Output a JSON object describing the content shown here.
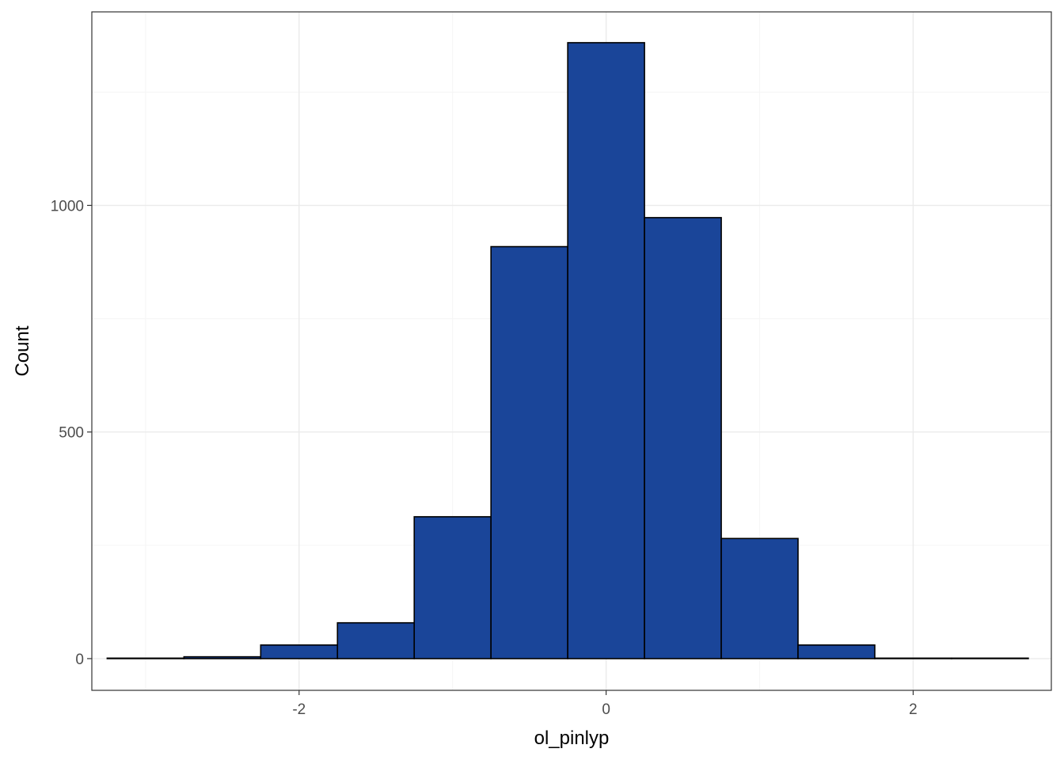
{
  "chart_data": {
    "type": "bar",
    "title": "",
    "xlabel": "ol_pinlyp",
    "ylabel": "Count",
    "x_ticks": [
      -2,
      0,
      2
    ],
    "y_ticks": [
      0,
      500,
      1000
    ],
    "x_tick_labels": [
      "-2",
      "0",
      "2"
    ],
    "y_tick_labels": [
      "0",
      "500",
      "1000"
    ],
    "xlim": [
      -3.35,
      2.9
    ],
    "ylim": [
      -70,
      1427
    ],
    "grid": true,
    "bin_width": 0.5,
    "bins": [
      {
        "x0": -3.25,
        "x1": -2.75,
        "count": 1
      },
      {
        "x0": -2.75,
        "x1": -2.25,
        "count": 4
      },
      {
        "x0": -2.25,
        "x1": -1.75,
        "count": 30
      },
      {
        "x0": -1.75,
        "x1": -1.25,
        "count": 79
      },
      {
        "x0": -1.25,
        "x1": -0.75,
        "count": 313
      },
      {
        "x0": -0.75,
        "x1": -0.25,
        "count": 909
      },
      {
        "x0": -0.25,
        "x1": 0.25,
        "count": 1359
      },
      {
        "x0": 0.25,
        "x1": 0.75,
        "count": 973
      },
      {
        "x0": 0.75,
        "x1": 1.25,
        "count": 265
      },
      {
        "x0": 1.25,
        "x1": 1.75,
        "count": 30
      },
      {
        "x0": 1.75,
        "x1": 2.25,
        "count": 1
      },
      {
        "x0": 2.25,
        "x1": 2.75,
        "count": 1
      }
    ]
  },
  "colors": {
    "bar_fill": "#1a4599",
    "bar_stroke": "#000000",
    "grid_major": "#ebebeb",
    "grid_minor": "#f5f5f5",
    "panel_border": "#333333",
    "axis_text": "#4d4d4d"
  }
}
